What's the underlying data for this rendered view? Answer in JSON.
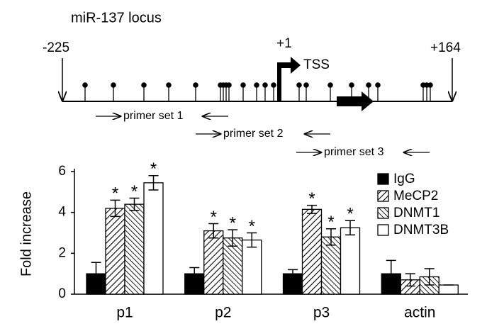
{
  "diagram": {
    "title": "miR-137 locus",
    "start": "-225",
    "tss_position": "+1",
    "end": "+164",
    "tss": "TSS",
    "primers": [
      "primer set 1",
      "primer set 2",
      "primer set 3"
    ]
  },
  "chart_data": {
    "type": "bar",
    "y_label": "Fold increase",
    "categories": [
      "p1",
      "p2",
      "p3",
      "actin"
    ],
    "series": [
      {
        "name": "IgG",
        "color": "#000000",
        "hatch": "none",
        "values": [
          1.0,
          1.0,
          1.0,
          1.0
        ],
        "errors": [
          0.55,
          0.3,
          0.2,
          0.65
        ]
      },
      {
        "name": "MeCP2",
        "color": "#ffffff",
        "hatch": "forward",
        "values": [
          4.2,
          3.1,
          4.15,
          0.7
        ],
        "errors": [
          0.4,
          0.35,
          0.2,
          0.3
        ]
      },
      {
        "name": "DNMT1",
        "color": "#ffffff",
        "hatch": "backward",
        "values": [
          4.4,
          2.75,
          2.8,
          0.85
        ],
        "errors": [
          0.3,
          0.4,
          0.4,
          0.4
        ]
      },
      {
        "name": "DNMT3B",
        "color": "#ffffff",
        "hatch": "none",
        "values": [
          5.45,
          2.65,
          3.25,
          0.45
        ],
        "errors": [
          0.35,
          0.35,
          0.35,
          0
        ]
      }
    ],
    "annotations": [
      {
        "label": "*",
        "category": "p1",
        "series": "MeCP2"
      },
      {
        "label": "*",
        "category": "p1",
        "series": "DNMT1"
      },
      {
        "label": "*",
        "category": "p1",
        "series": "DNMT3B"
      },
      {
        "label": "*",
        "category": "p2",
        "series": "MeCP2"
      },
      {
        "label": "*",
        "category": "p2",
        "series": "DNMT1"
      },
      {
        "label": "*",
        "category": "p2",
        "series": "DNMT3B"
      },
      {
        "label": "*",
        "category": "p3",
        "series": "MeCP2"
      },
      {
        "label": "*",
        "category": "p3",
        "series": "DNMT1"
      },
      {
        "label": "*",
        "category": "p3",
        "series": "DNMT3B"
      }
    ],
    "ylim": [
      0,
      6
    ],
    "yticks": [
      0,
      2,
      4,
      6
    ],
    "legend": "top-right"
  }
}
